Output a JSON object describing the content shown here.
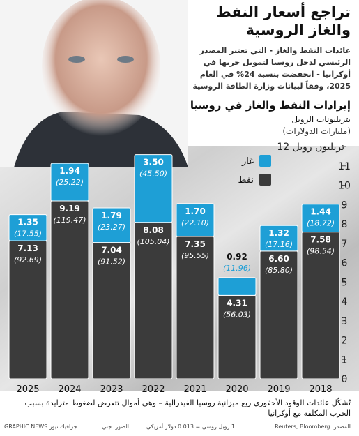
{
  "headline": "تراجع أسعار النفط والغاز الروسية",
  "intro": "عائدات النفط والغاز - التي تعتبر المصدر الرئيسي لدخل روسيا لتمويل حربها في أوكرانيا - انخفضت بنسبة 24% في العام 2025، وفقاً لبيانات وزارة الطاقة الروسية",
  "footer_note": "تُشكّل عائدات الوقود الأحفوري ربع ميزانية روسيا الفيدرالية – وهي أموال تتعرض لضغوط متزايدة بسبب الحرب المكلفة مع أوكرانيا",
  "source": "المصدر: Reuters, Bloomberg",
  "exchange_rate": "1 روبل روسي = 0.013 دولار أمريكي",
  "photo_credit": "الصور: جتي",
  "brand": "GRAPHIC NEWS جرافيك نيوز",
  "chart_data": {
    "type": "stacked-bar",
    "title": "إيرادات النفط والغاز في روسيا",
    "subtitle": "بتريليونات الروبل",
    "note": "(مليارات الدولارات)",
    "categories": [
      "2018",
      "2019",
      "2020",
      "2021",
      "2022",
      "2023",
      "2024",
      "2025"
    ],
    "series": [
      {
        "name": "نفط",
        "color": "#3b3b3b",
        "values": [
          7.58,
          6.6,
          4.31,
          7.35,
          8.08,
          7.04,
          9.19,
          7.13
        ],
        "value_labels": [
          "7.58",
          "6.60",
          "4.31",
          "7.35",
          "8.08",
          "7.04",
          "9.19",
          "7.13"
        ],
        "usd_labels": [
          "(98.54)",
          "(85.80)",
          "(56.03)",
          "(95.55)",
          "(105.04)",
          "(91.52)",
          "(119.47)",
          "(92.69)"
        ]
      },
      {
        "name": "غاز",
        "color": "#1e9fd6",
        "values": [
          1.44,
          1.32,
          0.92,
          1.7,
          3.5,
          1.79,
          1.94,
          1.35
        ],
        "value_labels": [
          "1.44",
          "1.32",
          "0.92",
          "1.70",
          "3.50",
          "1.79",
          "1.94",
          "1.35"
        ],
        "usd_labels": [
          "(18.72)",
          "(17.16)",
          "(11.96)",
          "(22.10)",
          "(45.50)",
          "(23.27)",
          "(25.22)",
          "(17.55)"
        ]
      }
    ],
    "ylim": [
      0,
      12
    ],
    "yticks": [
      0,
      1,
      2,
      3,
      4,
      5,
      6,
      7,
      8,
      9,
      10,
      11,
      {
        "value": 12,
        "label": "12 تريليون روبل"
      }
    ],
    "grid": false,
    "direction": "rtl"
  }
}
